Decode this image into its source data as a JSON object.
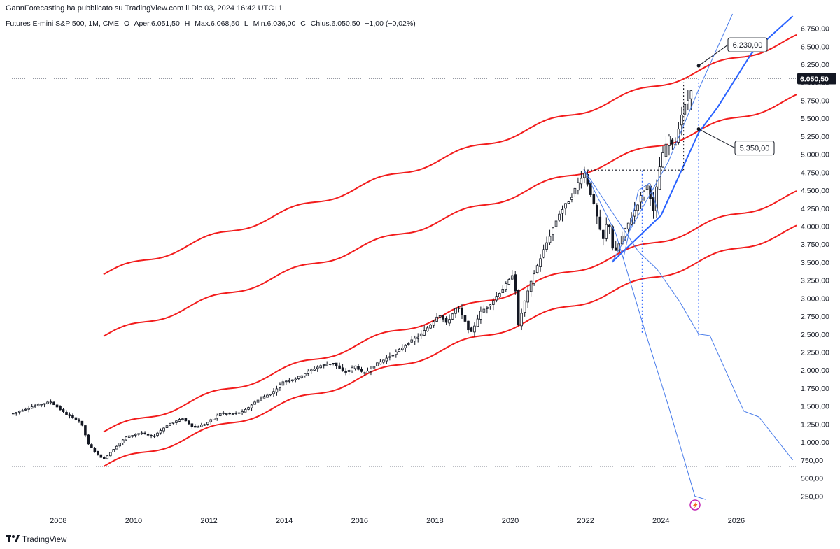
{
  "header": {
    "published": "GannForecasting ha pubblicato su TradingView.com il Dic 03, 2024 16:42 UTC+1"
  },
  "legend": {
    "symbol": "Futures E-mini S&P 500, 1M, CME",
    "open_label": "O",
    "open": "Aper.6.051,50",
    "high_label": "H",
    "high": "Max.6.068,50",
    "low_label": "L",
    "low": "Min.6.036,00",
    "close_label": "C",
    "close": "Chius.6.050,50",
    "change": "−1,00 (−0,02%)"
  },
  "footer": {
    "brand": "TradingView",
    "logo_icon": "tradingview-logo-icon"
  },
  "colors": {
    "candle_up": "#ffffff",
    "candle_down": "#131722",
    "channel": "#f21c1c",
    "fan": "#2962ff",
    "fan_thin": "#4a7dea",
    "price_tag_bg": "#ffffff"
  },
  "chart_data": {
    "type": "candlestick",
    "title": "",
    "xlabel": "",
    "ylabel": "",
    "x_ticks": [
      "2008",
      "2010",
      "2012",
      "2014",
      "2016",
      "2018",
      "2020",
      "2022",
      "2024",
      "2026"
    ],
    "y_ticks": [
      "250,00",
      "500,00",
      "750,00",
      "1.000,00",
      "1.250,00",
      "1.500,00",
      "1.750,00",
      "2.000,00",
      "2.250,00",
      "2.500,00",
      "2.750,00",
      "3.000,00",
      "3.250,00",
      "3.500,00",
      "3.750,00",
      "4.000,00",
      "4.250,00",
      "4.500,00",
      "4.750,00",
      "5.000,00",
      "5.250,00",
      "5.500,00",
      "5.750,00",
      "6.000,00",
      "6.250,00",
      "6.500,00",
      "6.750,00"
    ],
    "xlim": [
      2006.6,
      2027.6
    ],
    "ylim": [
      0,
      6950
    ],
    "grid": false,
    "last_price": 6050.5,
    "last_price_label": "6.050,50",
    "horizontal_lines": [
      6050.5,
      660
    ],
    "callouts": [
      {
        "label": "6.230,00",
        "x": 2025.0,
        "y": 6230
      },
      {
        "label": "5.350,00",
        "x": 2025.0,
        "y": 5350
      }
    ],
    "price_path": [
      [
        2006.8,
        1400
      ],
      [
        2007.4,
        1510
      ],
      [
        2007.8,
        1560
      ],
      [
        2008.2,
        1390
      ],
      [
        2008.6,
        1280
      ],
      [
        2008.8,
        970
      ],
      [
        2009.0,
        850
      ],
      [
        2009.2,
        760
      ],
      [
        2009.5,
        920
      ],
      [
        2009.8,
        1070
      ],
      [
        2010.2,
        1130
      ],
      [
        2010.5,
        1070
      ],
      [
        2010.9,
        1240
      ],
      [
        2011.3,
        1330
      ],
      [
        2011.6,
        1200
      ],
      [
        2011.9,
        1250
      ],
      [
        2012.3,
        1400
      ],
      [
        2012.6,
        1390
      ],
      [
        2012.9,
        1420
      ],
      [
        2013.3,
        1590
      ],
      [
        2013.7,
        1690
      ],
      [
        2013.95,
        1840
      ],
      [
        2014.3,
        1880
      ],
      [
        2014.6,
        1970
      ],
      [
        2014.95,
        2060
      ],
      [
        2015.3,
        2100
      ],
      [
        2015.6,
        1960
      ],
      [
        2015.9,
        2060
      ],
      [
        2016.1,
        1940
      ],
      [
        2016.4,
        2070
      ],
      [
        2016.7,
        2160
      ],
      [
        2016.95,
        2240
      ],
      [
        2017.3,
        2380
      ],
      [
        2017.6,
        2480
      ],
      [
        2017.95,
        2670
      ],
      [
        2018.1,
        2790
      ],
      [
        2018.3,
        2650
      ],
      [
        2018.6,
        2890
      ],
      [
        2018.95,
        2500
      ],
      [
        2019.2,
        2800
      ],
      [
        2019.5,
        2940
      ],
      [
        2019.95,
        3230
      ],
      [
        2020.1,
        3380
      ],
      [
        2020.2,
        2580
      ],
      [
        2020.35,
        2900
      ],
      [
        2020.6,
        3300
      ],
      [
        2020.95,
        3750
      ],
      [
        2021.3,
        4180
      ],
      [
        2021.6,
        4390
      ],
      [
        2021.95,
        4760
      ],
      [
        2022.1,
        4520
      ],
      [
        2022.3,
        4130
      ],
      [
        2022.45,
        3780
      ],
      [
        2022.6,
        4130
      ],
      [
        2022.75,
        3580
      ],
      [
        2022.95,
        3840
      ],
      [
        2023.2,
        4110
      ],
      [
        2023.5,
        4450
      ],
      [
        2023.65,
        4580
      ],
      [
        2023.8,
        4200
      ],
      [
        2023.95,
        4790
      ],
      [
        2024.1,
        5100
      ],
      [
        2024.25,
        5260
      ],
      [
        2024.35,
        5050
      ],
      [
        2024.5,
        5470
      ],
      [
        2024.6,
        5640
      ],
      [
        2024.75,
        5780
      ],
      [
        2024.85,
        6050.5
      ]
    ],
    "channels": [
      {
        "name": "",
        "points": [
          [
            2009.2,
            3330
          ],
          [
            2027.6,
            6620
          ]
        ]
      },
      {
        "name": "",
        "points": [
          [
            2009.2,
            2470
          ],
          [
            2027.6,
            5790
          ]
        ]
      },
      {
        "name": "",
        "points": [
          [
            2009.2,
            1140
          ],
          [
            2027.6,
            4450
          ]
        ]
      },
      {
        "name": "",
        "points": [
          [
            2009.2,
            660
          ],
          [
            2027.6,
            3970
          ]
        ]
      }
    ],
    "fan_lines": [
      {
        "name": "",
        "points": [
          [
            2022.7,
            3500
          ],
          [
            2024.0,
            4150
          ],
          [
            2025.0,
            5300
          ],
          [
            2025.5,
            5650
          ],
          [
            2026.4,
            6400
          ],
          [
            2027.5,
            6920
          ]
        ],
        "style": "thick"
      },
      {
        "name": "",
        "points": [
          [
            2022.7,
            3500
          ],
          [
            2024.2,
            4900
          ],
          [
            2025.0,
            5900
          ],
          [
            2025.9,
            6950
          ]
        ],
        "style": "thin"
      },
      {
        "name": "",
        "points": [
          [
            2021.95,
            4790
          ],
          [
            2022.8,
            3900
          ],
          [
            2023.6,
            2500
          ],
          [
            2024.2,
            1500
          ],
          [
            2024.9,
            250
          ],
          [
            2025.2,
            200
          ]
        ],
        "style": "thin"
      },
      {
        "name": "",
        "points": [
          [
            2021.95,
            4790
          ],
          [
            2023.4,
            3650
          ],
          [
            2023.9,
            3400
          ],
          [
            2024.5,
            2950
          ],
          [
            2025.0,
            2500
          ],
          [
            2025.3,
            2480
          ],
          [
            2026.2,
            1430
          ],
          [
            2026.6,
            1350
          ],
          [
            2027.5,
            750
          ]
        ],
        "style": "thin"
      },
      {
        "name": "",
        "points": [
          [
            2023.0,
            3550
          ],
          [
            2023.4,
            4500
          ],
          [
            2023.7,
            4600
          ],
          [
            2023.95,
            4150
          ]
        ],
        "style": "thin"
      }
    ],
    "dotted_lines": [
      {
        "points": [
          [
            2021.95,
            4780
          ],
          [
            2024.6,
            4780
          ]
        ]
      },
      {
        "points": [
          [
            2024.6,
            4780
          ],
          [
            2024.6,
            6000
          ]
        ]
      },
      {
        "points": [
          [
            2023.5,
            2520
          ],
          [
            2023.5,
            4800
          ]
        ]
      },
      {
        "points": [
          [
            2025.0,
            2480
          ],
          [
            2025.0,
            6050
          ]
        ]
      }
    ]
  }
}
